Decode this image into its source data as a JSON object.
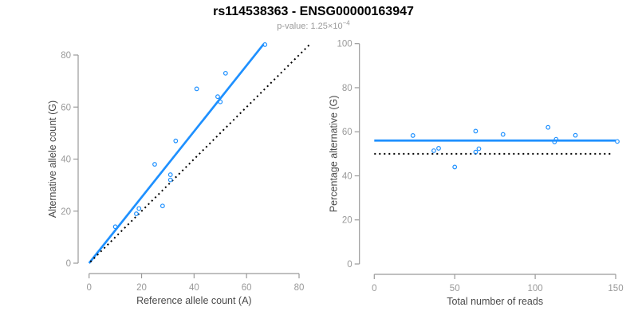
{
  "header": {
    "title": "rs114538363 - ENSG00000163947",
    "subtitle_prefix": "p-value: 1.25×10",
    "subtitle_exponent": "−4"
  },
  "colors": {
    "accent_blue": "#1E90FF",
    "dotted_line_black": "#000000",
    "axis_gray": "#9a9a9a",
    "tick_label_gray": "#999999",
    "axis_label_gray": "#4a4a4a",
    "title_black": "#000000",
    "subtitle_gray": "#9a9a9a"
  },
  "chart_data": [
    {
      "type": "scatter",
      "name": "allele-counts-scatter",
      "xlabel": "Reference allele count (A)",
      "ylabel": "Alternative allele count (G)",
      "xlim": [
        0,
        80
      ],
      "ylim": [
        0,
        80
      ],
      "xticks": [
        0,
        20,
        40,
        60,
        80
      ],
      "yticks": [
        0,
        20,
        40,
        60,
        80
      ],
      "grid": false,
      "points": [
        [
          10,
          14
        ],
        [
          18,
          19
        ],
        [
          19,
          21
        ],
        [
          25,
          38
        ],
        [
          28,
          22
        ],
        [
          31,
          32
        ],
        [
          31,
          34
        ],
        [
          33,
          47
        ],
        [
          41,
          67
        ],
        [
          49,
          64
        ],
        [
          50,
          62
        ],
        [
          52,
          73
        ],
        [
          67,
          84
        ]
      ],
      "lines": [
        {
          "name": "regression-line",
          "style": "solid",
          "color": "#1E90FF",
          "x1": 0,
          "y1": 0,
          "x2": 66.5,
          "y2": 84.2
        },
        {
          "name": "identity-line",
          "style": "dotted",
          "color": "#000000",
          "x1": 0.5,
          "y1": 0.5,
          "x2": 84,
          "y2": 84
        }
      ]
    },
    {
      "type": "scatter",
      "name": "percentage-vs-reads-scatter",
      "xlabel": "Total number of reads",
      "ylabel": "Percentage alternative (G)",
      "xlim": [
        0,
        150
      ],
      "ylim": [
        0,
        100
      ],
      "xticks": [
        0,
        50,
        100,
        150
      ],
      "yticks": [
        0,
        20,
        40,
        60,
        80,
        100
      ],
      "grid": false,
      "points": [
        [
          24,
          58.3
        ],
        [
          37,
          51.4
        ],
        [
          40,
          52.5
        ],
        [
          50,
          44.0
        ],
        [
          63,
          60.3
        ],
        [
          63,
          50.8
        ],
        [
          65,
          52.3
        ],
        [
          80,
          58.8
        ],
        [
          108,
          62.0
        ],
        [
          112,
          55.4
        ],
        [
          113,
          56.6
        ],
        [
          125,
          58.4
        ],
        [
          151,
          55.6
        ]
      ],
      "lines": [
        {
          "name": "mean-percentage-line",
          "style": "solid",
          "color": "#1E90FF",
          "x1": 0,
          "y1": 56,
          "x2": 150,
          "y2": 56
        },
        {
          "name": "fifty-percent-line",
          "style": "dotted",
          "color": "#000000",
          "x1": 0,
          "y1": 50,
          "x2": 148,
          "y2": 50
        }
      ]
    }
  ]
}
